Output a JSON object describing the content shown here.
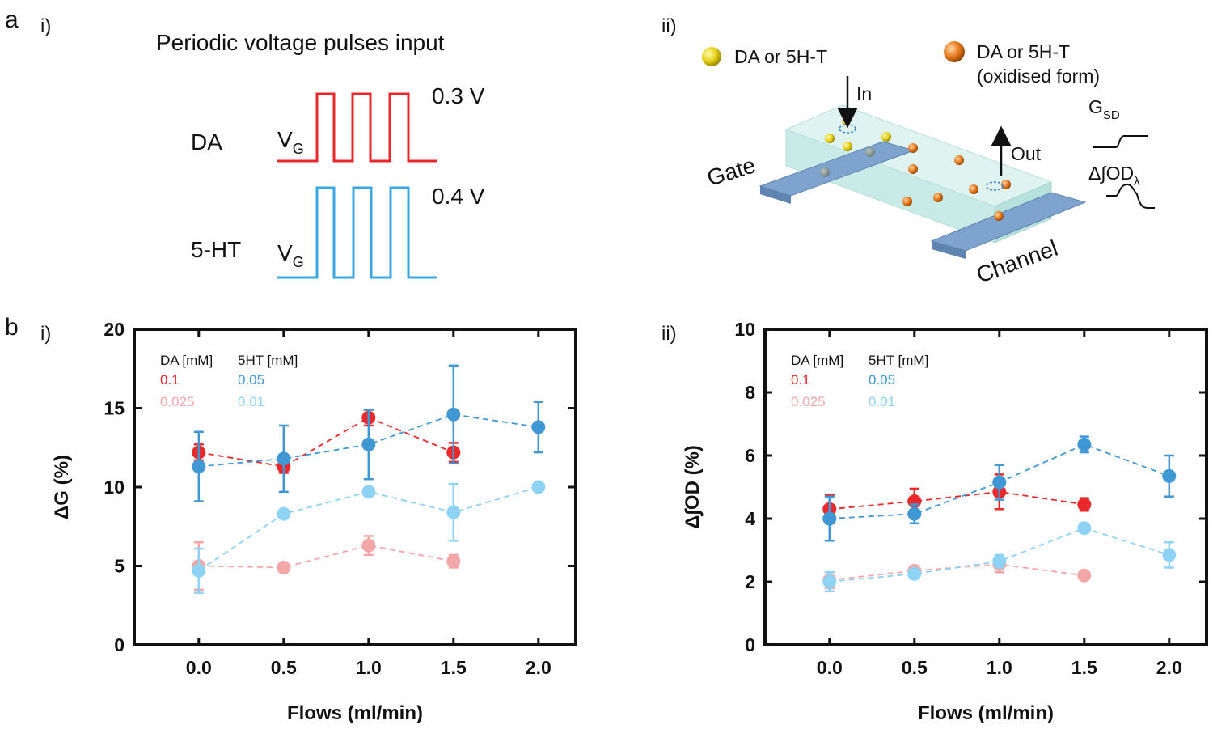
{
  "panel_labels": {
    "a": "a",
    "b": "b",
    "a_i": "i)",
    "a_ii": "ii)",
    "b_i": "i)",
    "b_ii": "ii)"
  },
  "schematic_pulses": {
    "title": "Periodic voltage pulses input",
    "da_label": "DA",
    "ht_label": "5-HT",
    "vg": "V",
    "vg_sub": "G",
    "da_voltage": "0.3 V",
    "ht_voltage": "0.4 V",
    "da_color": "#e8282b",
    "ht_color": "#3aa7e0"
  },
  "schematic_device": {
    "legend_reduced": "DA or 5H-T",
    "legend_oxidised_1": "DA or 5H-T",
    "legend_oxidised_2": "(oxidised form)",
    "in_label": "In",
    "out_label": "Out",
    "gate_label": "Gate",
    "channel_label": "Channel",
    "gsd": "G",
    "gsd_sub": "SD",
    "dod_prefix": "Δ∫OD",
    "dod_sub": "λ"
  },
  "chart_data": [
    {
      "type": "scatter",
      "panel": "b-i",
      "xlabel": "Flows (ml/min)",
      "ylabel": "ΔG (%)",
      "xlim": [
        -0.38,
        2.22
      ],
      "ylim": [
        0,
        20
      ],
      "xticks": [
        0.0,
        0.5,
        1.0,
        1.5,
        2.0
      ],
      "xtick_labels": [
        "0.0",
        "0.5",
        "1.0",
        "1.5",
        "2.0"
      ],
      "yticks": [
        0,
        5,
        10,
        15,
        20
      ],
      "ytick_labels": [
        "0",
        "5",
        "10",
        "15",
        "20"
      ],
      "legend": {
        "da_header": "DA [mM]",
        "ht_header": "5HT [mM]",
        "placement": "top-left"
      },
      "series": [
        {
          "name": "0.1",
          "group": "DA",
          "color": "#e8282b",
          "x": [
            0.0,
            0.5,
            1.0,
            1.5
          ],
          "y": [
            12.2,
            11.3,
            14.4,
            12.2
          ],
          "err": [
            0.5,
            0.4,
            0.5,
            0.6
          ]
        },
        {
          "name": "0.025",
          "group": "DA",
          "color": "#f4a7a9",
          "x": [
            0.0,
            0.5,
            1.0,
            1.5
          ],
          "y": [
            5.0,
            4.9,
            6.3,
            5.3
          ],
          "err": [
            1.5,
            0.3,
            0.6,
            0.4
          ]
        },
        {
          "name": "0.05",
          "group": "5HT",
          "color": "#3f97d4",
          "x": [
            0.0,
            0.5,
            1.0,
            1.5,
            2.0
          ],
          "y": [
            11.3,
            11.8,
            12.7,
            14.6,
            13.8
          ],
          "err": [
            2.2,
            2.1,
            2.2,
            3.1,
            1.6
          ]
        },
        {
          "name": "0.01",
          "group": "5HT",
          "color": "#8fd3f4",
          "x": [
            0.0,
            0.5,
            1.0,
            1.5,
            2.0
          ],
          "y": [
            4.7,
            8.3,
            9.7,
            8.4,
            10.0
          ],
          "err": [
            1.4,
            0.2,
            0.2,
            1.8,
            0.2
          ]
        }
      ]
    },
    {
      "type": "scatter",
      "panel": "b-ii",
      "xlabel": "Flows (ml/min)",
      "ylabel": "Δ∫OD (%)",
      "xlim": [
        -0.38,
        2.22
      ],
      "ylim": [
        0,
        10
      ],
      "xticks": [
        0.0,
        0.5,
        1.0,
        1.5,
        2.0
      ],
      "xtick_labels": [
        "0.0",
        "0.5",
        "1.0",
        "1.5",
        "2.0"
      ],
      "yticks": [
        0,
        2,
        4,
        6,
        8,
        10
      ],
      "ytick_labels": [
        "0",
        "2",
        "4",
        "6",
        "8",
        "10"
      ],
      "legend": {
        "da_header": "DA [mM]",
        "ht_header": "5HT [mM]",
        "placement": "top-left"
      },
      "series": [
        {
          "name": "0.1",
          "group": "DA",
          "color": "#e8282b",
          "x": [
            0.0,
            0.5,
            1.0,
            1.5
          ],
          "y": [
            4.3,
            4.55,
            4.85,
            4.45
          ],
          "err": [
            0.45,
            0.4,
            0.55,
            0.2
          ]
        },
        {
          "name": "0.025",
          "group": "DA",
          "color": "#f4a7a9",
          "x": [
            0.0,
            0.5,
            1.0,
            1.5
          ],
          "y": [
            2.05,
            2.35,
            2.55,
            2.2
          ],
          "err": [
            0.25,
            0.15,
            0.25,
            0.05
          ]
        },
        {
          "name": "0.05",
          "group": "5HT",
          "color": "#3f97d4",
          "x": [
            0.0,
            0.5,
            1.0,
            1.5,
            2.0
          ],
          "y": [
            4.0,
            4.15,
            5.15,
            6.35,
            5.35
          ],
          "err": [
            0.7,
            0.3,
            0.55,
            0.25,
            0.65
          ]
        },
        {
          "name": "0.01",
          "group": "5HT",
          "color": "#8fd3f4",
          "x": [
            0.0,
            0.5,
            1.0,
            1.5,
            2.0
          ],
          "y": [
            2.0,
            2.25,
            2.65,
            3.7,
            2.85
          ],
          "err": [
            0.3,
            0.15,
            0.2,
            0.1,
            0.4
          ]
        }
      ]
    }
  ]
}
